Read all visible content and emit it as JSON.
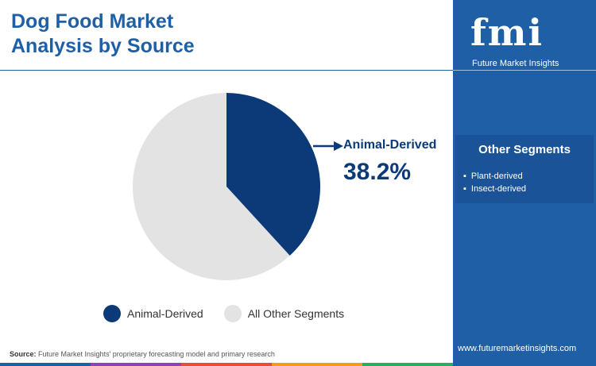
{
  "title": "Dog Food Market Analysis by Source",
  "chart_data": {
    "type": "pie",
    "title": "Dog Food Market Analysis by Source",
    "slices": [
      {
        "label": "Animal-Derived",
        "value": 38.2,
        "color": "#0c3a78"
      },
      {
        "label": "All Other Segments",
        "value": 61.8,
        "color": "#e3e3e3"
      }
    ],
    "annotation": {
      "label": "Animal-Derived",
      "value_text": "38.2%"
    },
    "legend": [
      "Animal-Derived",
      "All Other Segments"
    ],
    "legend_position": "bottom"
  },
  "sidebar": {
    "logo_text": "fmi",
    "logo_sub": "Future Market Insights",
    "other_segments_title": "Other Segments",
    "other_segments": [
      "Plant-derived",
      "Insect-derived"
    ],
    "website": "www.futuremarketinsights.com"
  },
  "source": {
    "label": "Source:",
    "text": "Future Market Insights' proprietary forecasting model and primary research"
  },
  "colors": {
    "brand_blue": "#1f5fa6",
    "dark_navy": "#0c3a78",
    "light_gray": "#e3e3e3",
    "bar_colors": [
      "#1f5fa6",
      "#8e44ad",
      "#e74c3c",
      "#f39c12",
      "#27ae60"
    ]
  }
}
